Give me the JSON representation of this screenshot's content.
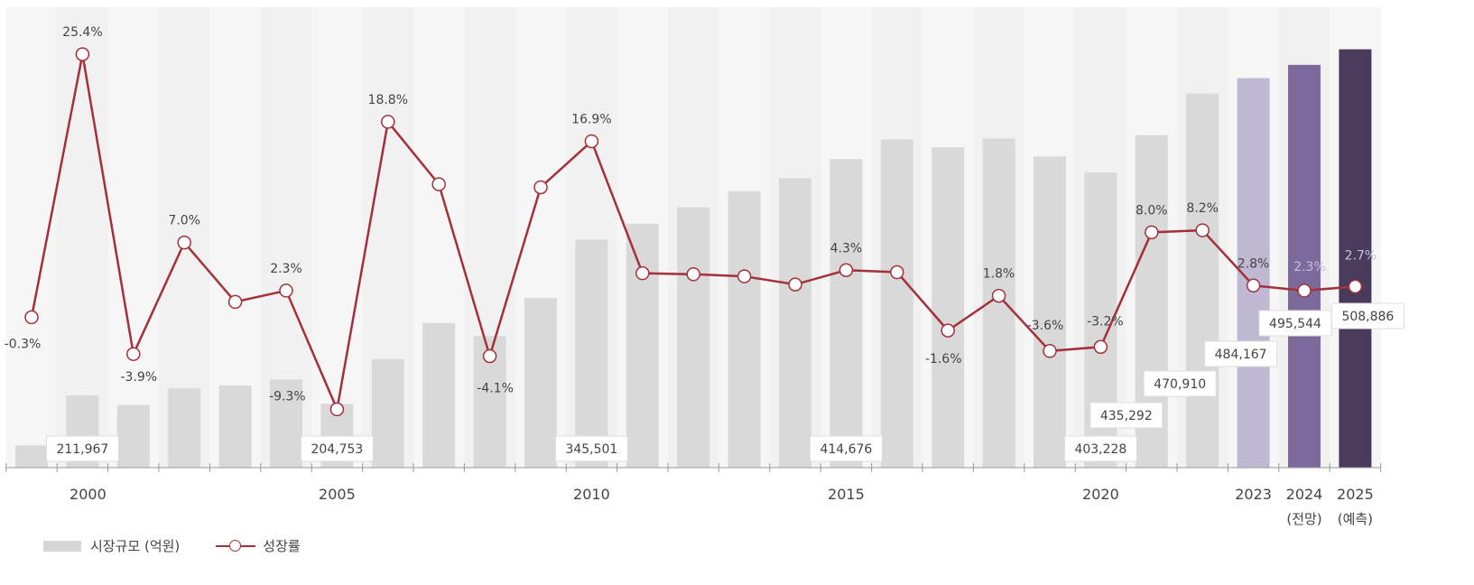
{
  "chart_data": {
    "type": "bar+line",
    "categories": [
      "1999",
      "2000",
      "2001",
      "2002",
      "2003",
      "2004",
      "2005",
      "2006",
      "2007",
      "2008",
      "2009",
      "2010",
      "2011",
      "2012",
      "2013",
      "2014",
      "2015",
      "2016",
      "2017",
      "2018",
      "2019",
      "2020",
      "2021",
      "2022",
      "2023",
      "2024",
      "2025"
    ],
    "x_tick_labels": [
      "",
      "2000",
      "",
      "",
      "",
      "",
      "2005",
      "",
      "",
      "",
      "",
      "2010",
      "",
      "",
      "",
      "",
      "2015",
      "",
      "",
      "",
      "",
      "2020",
      "",
      "",
      "2023",
      "2024",
      "2025"
    ],
    "x_tick_sublabels": {
      "2024": "(전망)",
      "2025": "(예측)"
    },
    "series": [
      {
        "name": "시장규모 (억원)",
        "type": "bar",
        "values": [
          169000,
          211967,
          203700,
          218000,
          220600,
          225600,
          204753,
          243200,
          274100,
          262900,
          295500,
          345501,
          359300,
          373300,
          387100,
          398400,
          414676,
          431600,
          424800,
          432400,
          416900,
          403228,
          435292,
          470910,
          484167,
          495544,
          508886
        ],
        "data_labels": {
          "2000": "211,967",
          "2005": "204,753",
          "2010": "345,501",
          "2015": "414,676",
          "2020": "403,228",
          "2021": "435,292",
          "2022": "470,910",
          "2023": "484,167",
          "2024": "495,544",
          "2025": "508,886"
        },
        "colors": {
          "default": "#d9d9d9",
          "2023": "#bfb8d2",
          "2024": "#7b6a9b",
          "2025": "#483b5c"
        }
      },
      {
        "name": "성장률",
        "type": "line",
        "values": [
          -0.3,
          25.4,
          -3.9,
          7.0,
          1.2,
          2.3,
          -9.3,
          18.8,
          12.7,
          -4.1,
          12.4,
          16.9,
          4.0,
          3.9,
          3.7,
          2.9,
          4.3,
          4.1,
          -1.6,
          1.8,
          -3.6,
          -3.2,
          8.0,
          8.2,
          2.8,
          2.3,
          2.7
        ],
        "data_labels": {
          "1999": "-0.3%",
          "2000": "25.4%",
          "2001": "-3.9%",
          "2002": "7.0%",
          "2004": "2.3%",
          "2005": "-9.3%",
          "2006": "18.8%",
          "2008": "-4.1%",
          "2010": "16.9%",
          "2015": "4.3%",
          "2017": "-1.6%",
          "2018": "1.8%",
          "2019": "-3.6%",
          "2020": "-3.2%",
          "2021": "8.0%",
          "2022": "8.2%",
          "2023": "2.8%",
          "2024": "2.3%",
          "2025": "2.7%"
        },
        "color": "#a3303a"
      }
    ],
    "bar_ylim": [
      150000,
      545000
    ],
    "line_ylim": [
      -15,
      30
    ],
    "grid": false,
    "legend": "bottom-left",
    "title": "",
    "xlabel": "",
    "ylabel": ""
  },
  "legend": {
    "bar_label": "시장규모 (억원)",
    "line_label": "성장률"
  }
}
